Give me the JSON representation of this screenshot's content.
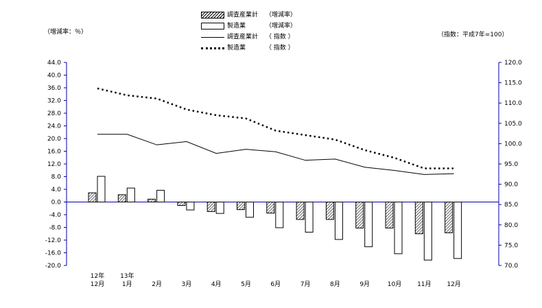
{
  "units": {
    "left": "（増減率：％）",
    "right": "（指数：平成7年=100）"
  },
  "legend": [
    {
      "name": "調査産業計",
      "kind": "（増減率）",
      "style": "hatch"
    },
    {
      "name": "製造業",
      "kind": "（増減率）",
      "style": "white"
    },
    {
      "name": "調査産業計",
      "kind": "（ 指数 ）",
      "style": "solid"
    },
    {
      "name": "製造業",
      "kind": "（ 指数 ）",
      "style": "dot"
    }
  ],
  "chart_data": {
    "type": "bar",
    "categories": [
      {
        "top": "12年",
        "bottom": "12月"
      },
      {
        "top": "13年",
        "bottom": "1月"
      },
      {
        "top": "",
        "bottom": "2月"
      },
      {
        "top": "",
        "bottom": "3月"
      },
      {
        "top": "",
        "bottom": "4月"
      },
      {
        "top": "",
        "bottom": "5月"
      },
      {
        "top": "",
        "bottom": "6月"
      },
      {
        "top": "",
        "bottom": "7月"
      },
      {
        "top": "",
        "bottom": "8月"
      },
      {
        "top": "",
        "bottom": "9月"
      },
      {
        "top": "",
        "bottom": "10月"
      },
      {
        "top": "",
        "bottom": "11月"
      },
      {
        "top": "",
        "bottom": "12月"
      }
    ],
    "left_axis": {
      "ylim": [
        -20.0,
        44.0
      ],
      "ticks": [
        "44.0",
        "40.0",
        "36.0",
        "32.0",
        "28.0",
        "24.0",
        "20.0",
        "16.0",
        "12.0",
        "8.0",
        "4.0",
        "0.0",
        "-4.0",
        "-8.0",
        "-12.0",
        "-16.0",
        "-20.0"
      ]
    },
    "right_axis": {
      "ylim": [
        70.0,
        120.0
      ],
      "ticks": [
        "120.0",
        "115.0",
        "110.0",
        "105.0",
        "100.0",
        "95.0",
        "90.0",
        "85.0",
        "80.0",
        "75.0",
        "70.0"
      ]
    },
    "bar_series": [
      {
        "name": "調査産業計（増減率）",
        "pattern": "hatch",
        "values": [
          2.9,
          2.3,
          0.9,
          -1.1,
          -3.0,
          -2.4,
          -3.5,
          -5.5,
          -5.5,
          -8.2,
          -8.2,
          -10.0,
          -9.7
        ]
      },
      {
        "name": "製造業（増減率）",
        "pattern": "white",
        "values": [
          8.1,
          4.4,
          3.7,
          -2.5,
          -3.6,
          -4.8,
          -8.1,
          -9.5,
          -11.8,
          -14.1,
          -16.3,
          -18.3,
          -17.8
        ]
      }
    ],
    "line_series": [
      {
        "name": "調査産業計（指数）",
        "style": "solid",
        "values": [
          102.3,
          102.3,
          99.7,
          100.5,
          97.6,
          98.6,
          98.0,
          95.9,
          96.2,
          94.2,
          93.4,
          92.4,
          92.6
        ]
      },
      {
        "name": "製造業（指数）",
        "style": "dot",
        "values": [
          113.6,
          111.9,
          111.1,
          108.4,
          107.0,
          106.2,
          103.2,
          102.1,
          101.0,
          98.4,
          96.5,
          93.9,
          93.9
        ]
      }
    ],
    "grid": false,
    "legend_position": "top-center"
  }
}
